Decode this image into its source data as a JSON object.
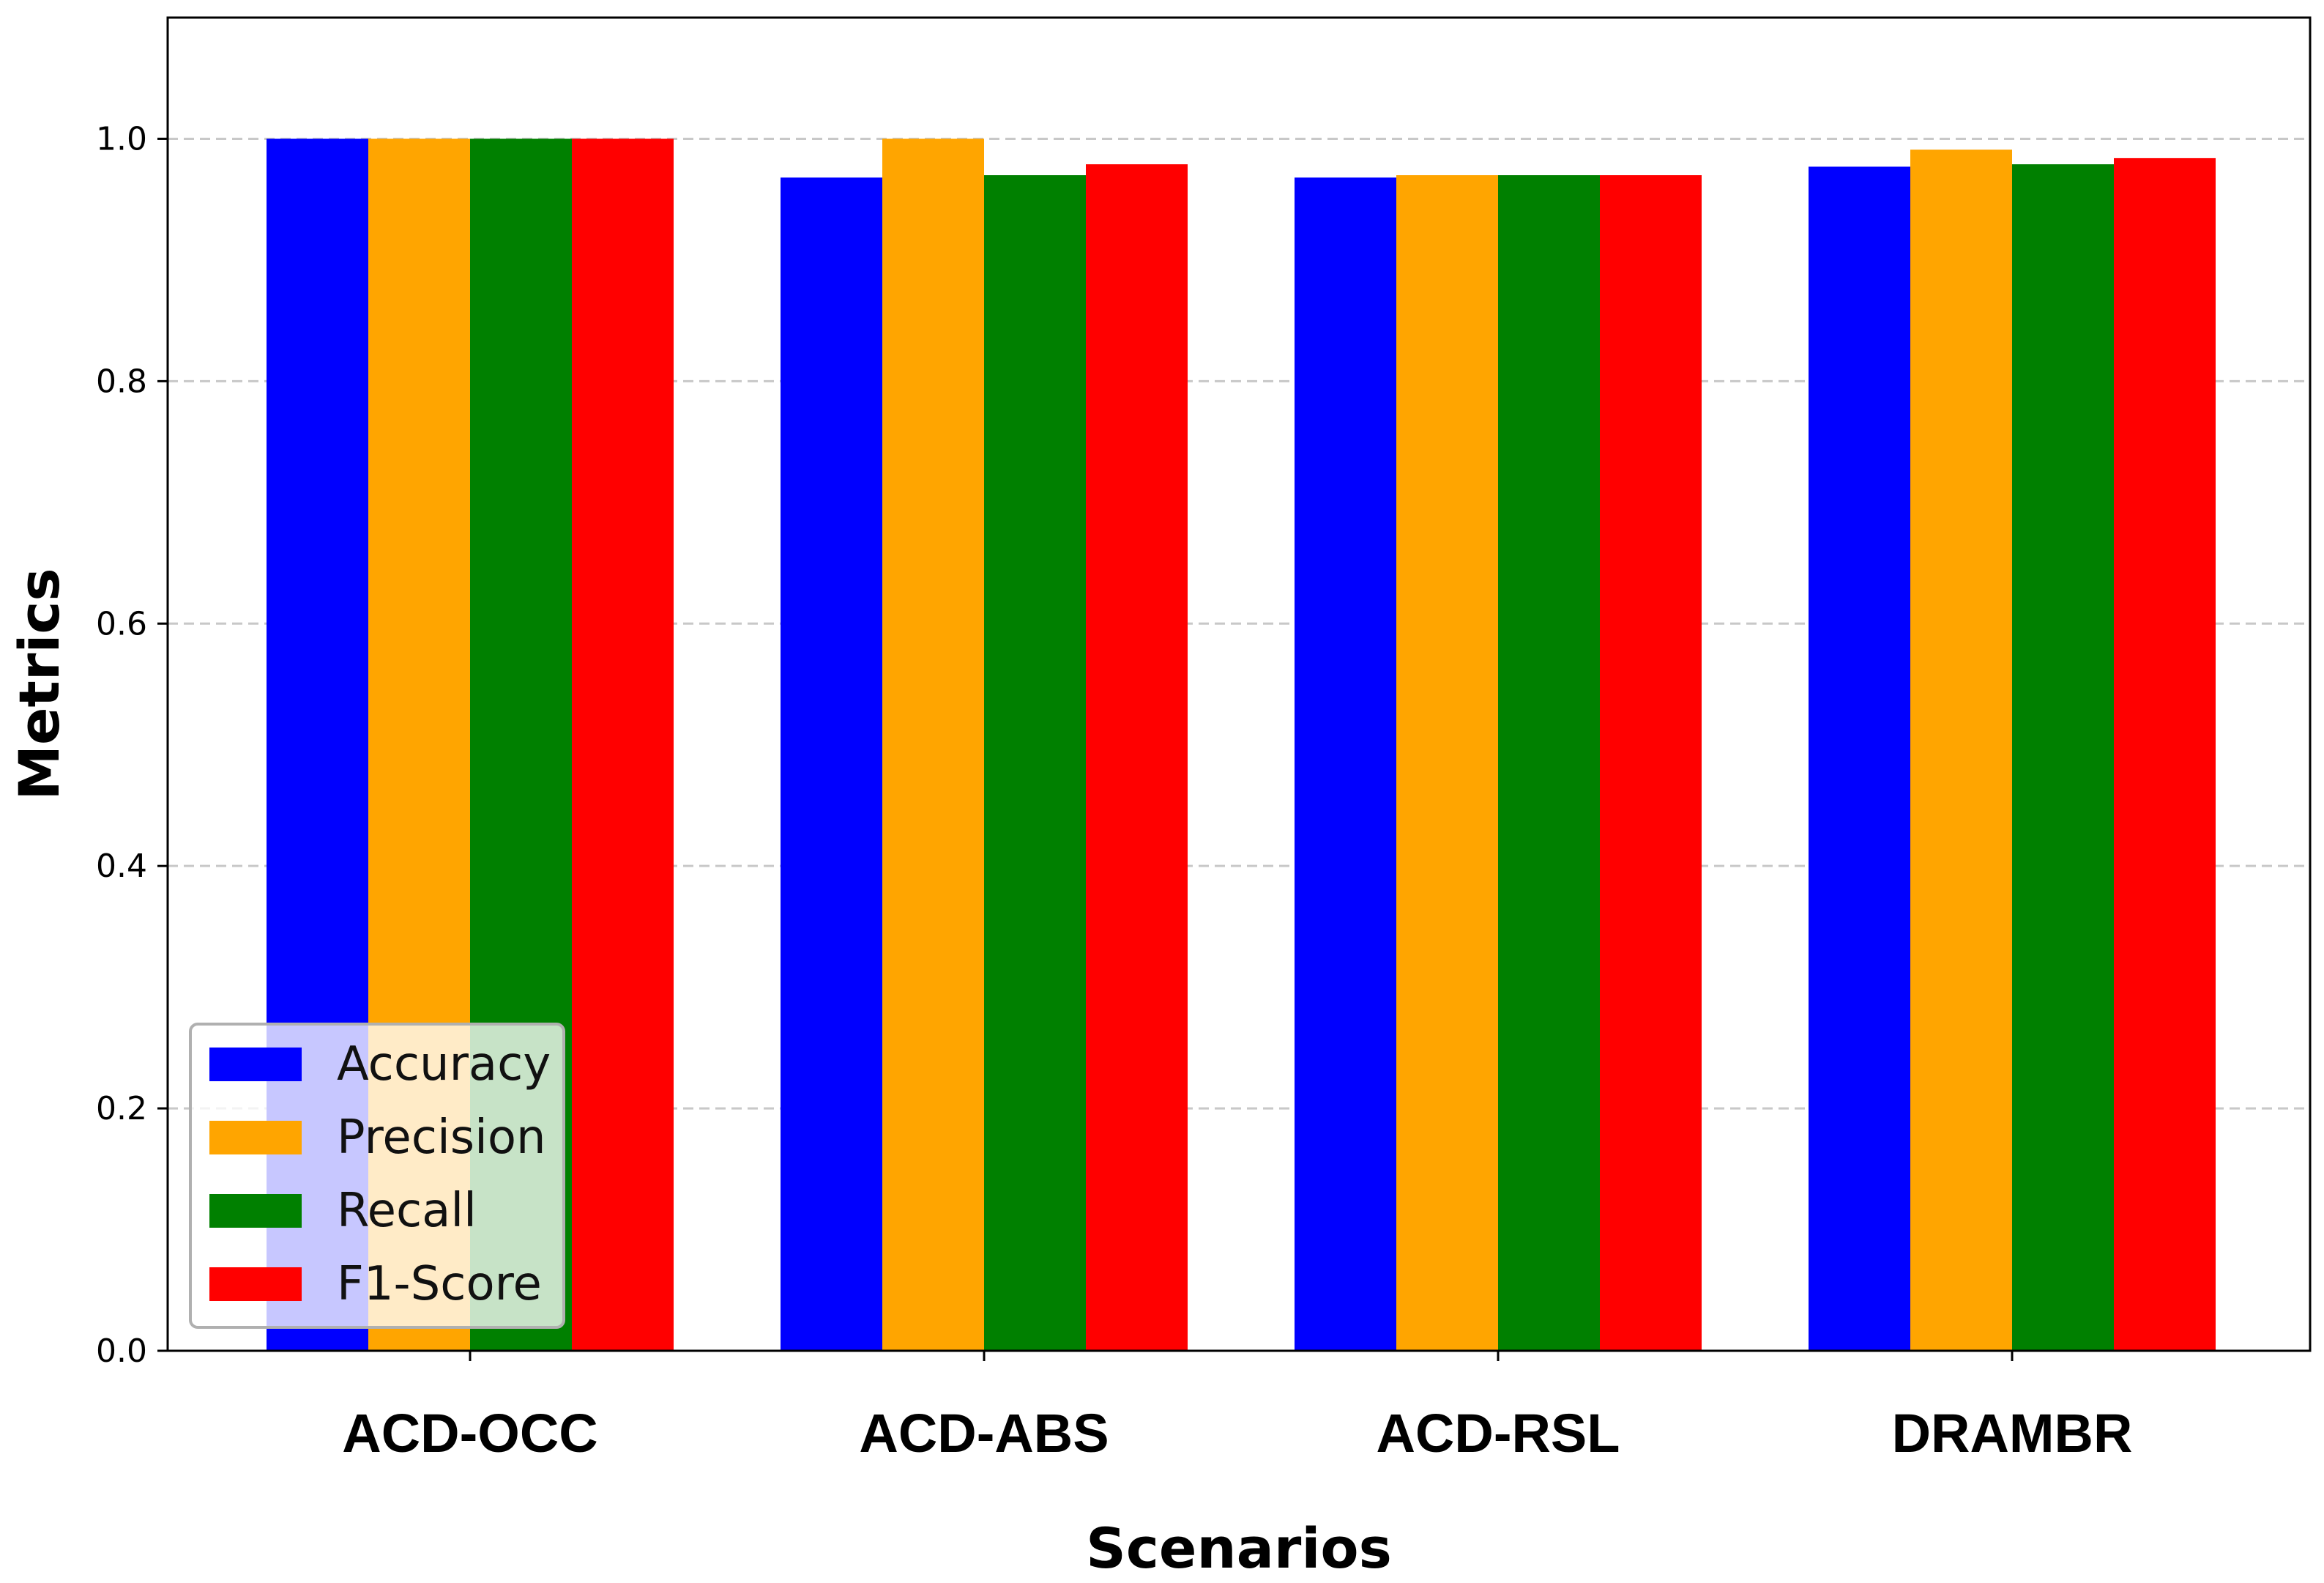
{
  "chart_data": {
    "type": "bar",
    "title": "",
    "xlabel": "Scenarios",
    "ylabel": "Metrics",
    "categories": [
      "ACD-OCC",
      "ACD-ABS",
      "ACD-RSL",
      "DRAMBR"
    ],
    "series": [
      {
        "name": "Accuracy",
        "color": "#0000ff",
        "values": [
          1.0,
          0.968,
          0.968,
          0.977
        ]
      },
      {
        "name": "Precision",
        "color": "#ffa500",
        "values": [
          1.0,
          1.0,
          0.97,
          0.991
        ]
      },
      {
        "name": "Recall",
        "color": "#008000",
        "values": [
          1.0,
          0.97,
          0.97,
          0.979
        ]
      },
      {
        "name": "F1-Score",
        "color": "#ff0000",
        "values": [
          1.0,
          0.979,
          0.97,
          0.984
        ]
      }
    ],
    "ylim": [
      0,
      1.1
    ],
    "yticks": [
      "0.0",
      "0.2",
      "0.4",
      "0.6",
      "0.8",
      "1.0"
    ],
    "grid": true,
    "legend_position": "lower-left"
  }
}
